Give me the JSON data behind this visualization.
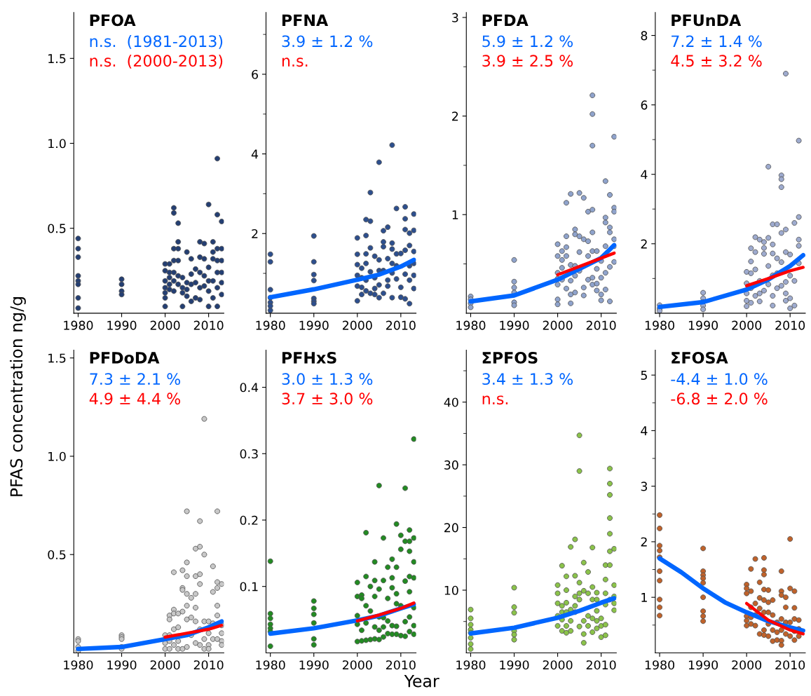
{
  "chart_data": [
    {
      "type": "scatter",
      "title": "PFOA",
      "annotations": [
        "n.s.  (1981-2013)",
        "n.s.  (2000-2013)"
      ],
      "xlim": [
        1979,
        2013.5
      ],
      "xticks": [
        1980,
        1990,
        2000,
        2010
      ],
      "ylim": [
        0,
        1.77
      ],
      "yticks": [
        0.5,
        {
          "value": 1.0,
          "label": "1.0"
        },
        1.5
      ],
      "series": [
        {
          "color": "#243f73",
          "marker": "circle",
          "x": [
            1980,
            1980,
            1980,
            1980,
            1980,
            1980,
            1980,
            1980,
            1990,
            1990,
            1990,
            1990,
            2000,
            2000,
            2000,
            2000,
            2000,
            2000,
            2000,
            2001,
            2001,
            2001,
            2001,
            2001,
            2002,
            2002,
            2002,
            2002,
            2002,
            2002,
            2002,
            2003,
            2003,
            2003,
            2003,
            2003,
            2003,
            2004,
            2004,
            2004,
            2004,
            2005,
            2005,
            2005,
            2005,
            2006,
            2006,
            2006,
            2006,
            2007,
            2007,
            2007,
            2008,
            2008,
            2008,
            2008,
            2008,
            2009,
            2009,
            2009,
            2009,
            2010,
            2010,
            2010,
            2010,
            2010,
            2011,
            2011,
            2011,
            2011,
            2011,
            2012,
            2012,
            2012,
            2012,
            2012,
            2012,
            2012,
            2013,
            2013,
            2013,
            2013,
            2013,
            2013
          ],
          "values": [
            0.44,
            0.38,
            0.33,
            0.22,
            0.19,
            0.17,
            0.09,
            0.03,
            0.2,
            0.17,
            0.13,
            0.11,
            0.29,
            0.25,
            0.19,
            0.15,
            0.12,
            0.09,
            0.04,
            0.29,
            0.24,
            0.21,
            0.17,
            0.14,
            0.62,
            0.59,
            0.38,
            0.31,
            0.24,
            0.19,
            0.13,
            0.53,
            0.42,
            0.38,
            0.31,
            0.22,
            0.17,
            0.21,
            0.15,
            0.12,
            0.04,
            0.36,
            0.18,
            0.14,
            0.1,
            0.32,
            0.23,
            0.17,
            0.07,
            0.26,
            0.18,
            0.09,
            0.42,
            0.33,
            0.24,
            0.15,
            0.08,
            0.41,
            0.32,
            0.22,
            0.16,
            0.64,
            0.27,
            0.19,
            0.13,
            0.04,
            0.42,
            0.36,
            0.32,
            0.19,
            0.09,
            0.91,
            0.58,
            0.38,
            0.31,
            0.24,
            0.15,
            0.04,
            0.54,
            0.38,
            0.31,
            0.24,
            0.18,
            0.11
          ]
        }
      ]
    },
    {
      "type": "scatter",
      "title": "PFNA",
      "annotations": [
        "3.9 ± 1.2 %",
        "n.s."
      ],
      "xlim": [
        1979,
        2013.5
      ],
      "xticks": [
        1980,
        1990,
        2000,
        2010
      ],
      "ylim": [
        0,
        7.55
      ],
      "yticks": [
        {
          "value": 1,
          "label": null
        },
        2,
        {
          "value": 3,
          "label": null
        },
        4,
        {
          "value": 5,
          "label": null
        },
        6,
        {
          "value": 7,
          "label": null
        }
      ],
      "series": [
        {
          "color": "#2d4f8e",
          "marker": "circle",
          "x": [
            1980,
            1980,
            1980,
            1980,
            1980,
            1980,
            1980,
            1990,
            1990,
            1990,
            1990,
            1990,
            1990,
            1990,
            2000,
            2000,
            2000,
            2000,
            2000,
            2000,
            2001,
            2001,
            2001,
            2001,
            2002,
            2002,
            2002,
            2002,
            2002,
            2002,
            2003,
            2003,
            2003,
            2003,
            2003,
            2004,
            2004,
            2004,
            2004,
            2005,
            2005,
            2005,
            2005,
            2005,
            2006,
            2006,
            2006,
            2006,
            2006,
            2007,
            2007,
            2007,
            2007,
            2008,
            2008,
            2008,
            2008,
            2008,
            2008,
            2009,
            2009,
            2009,
            2009,
            2010,
            2010,
            2010,
            2011,
            2011,
            2011,
            2011,
            2011,
            2011,
            2012,
            2012,
            2012,
            2012,
            2012,
            2013,
            2013,
            2013,
            2013,
            2013,
            2013
          ],
          "values": [
            1.48,
            1.29,
            0.59,
            0.39,
            0.27,
            0.18,
            0.07,
            1.94,
            1.29,
            0.97,
            0.82,
            0.37,
            0.3,
            0.24,
            1.89,
            1.48,
            1.22,
            0.95,
            0.68,
            0.31,
            1.13,
            0.89,
            0.65,
            0.47,
            2.35,
            1.95,
            1.49,
            1.25,
            0.83,
            0.56,
            3.03,
            2.31,
            1.64,
            1.04,
            0.5,
            1.43,
            0.89,
            0.62,
            0.47,
            3.79,
            1.34,
            1.07,
            0.71,
            0.39,
            2.07,
            1.79,
            1.67,
            1.07,
            0.5,
            2.16,
            1.37,
            0.83,
            0.68,
            4.22,
            1.76,
            1.61,
            1.25,
            1.01,
            0.39,
            2.63,
            1.49,
            1.19,
            0.86,
            1.5,
            0.65,
            0.4,
            2.67,
            2.37,
            2.1,
            1.58,
            0.98,
            0.36,
            2.01,
            1.7,
            1.19,
            0.83,
            0.24,
            2.49,
            2.08,
            1.55,
            1.25,
            0.95,
            0.62
          ]
        },
        {
          "type": "line",
          "color": "#0066ff",
          "x": [
            1980,
            1990,
            2000,
            2005,
            2010,
            2013
          ],
          "values": [
            0.4,
            0.6,
            0.84,
            0.97,
            1.17,
            1.34
          ]
        }
      ]
    },
    {
      "type": "scatter",
      "title": "PFDA",
      "annotations": [
        "5.9 ± 1.2 %",
        "3.9 ± 2.5 %"
      ],
      "xlim": [
        1979,
        2013.5
      ],
      "xticks": [
        1980,
        1990,
        2000,
        2010
      ],
      "ylim": [
        0,
        3.05
      ],
      "yticks": [
        {
          "value": 0.5,
          "label": null
        },
        1,
        {
          "value": 1.5,
          "label": null
        },
        2,
        {
          "value": 2.5,
          "label": null
        },
        3
      ],
      "series": [
        {
          "color": "#8fa3cc",
          "marker": "circle",
          "x": [
            1980,
            1980,
            1980,
            1980,
            1990,
            1990,
            1990,
            1990,
            1990,
            1990,
            2000,
            2000,
            2000,
            2000,
            2000,
            2000,
            2000,
            2001,
            2001,
            2001,
            2001,
            2002,
            2002,
            2002,
            2002,
            2002,
            2003,
            2003,
            2003,
            2003,
            2003,
            2004,
            2004,
            2004,
            2004,
            2004,
            2005,
            2005,
            2005,
            2005,
            2006,
            2006,
            2006,
            2006,
            2007,
            2007,
            2007,
            2007,
            2008,
            2008,
            2008,
            2008,
            2008,
            2008,
            2008,
            2008,
            2009,
            2009,
            2009,
            2009,
            2010,
            2010,
            2010,
            2010,
            2011,
            2011,
            2011,
            2011,
            2011,
            2011,
            2012,
            2012,
            2012,
            2012,
            2012,
            2013,
            2013,
            2013,
            2013,
            2013,
            2013
          ],
          "values": [
            0.17,
            0.14,
            0.1,
            0.06,
            0.54,
            0.32,
            0.26,
            0.21,
            0.11,
            0.08,
            0.7,
            0.58,
            0.41,
            0.35,
            0.29,
            0.14,
            0.09,
            0.63,
            0.54,
            0.46,
            0.34,
            1.12,
            0.78,
            0.67,
            0.58,
            0.25,
            1.21,
            0.49,
            0.33,
            0.19,
            0.1,
            0.85,
            0.8,
            0.48,
            0.38,
            0.21,
            1.22,
            0.78,
            0.62,
            0.43,
            1.17,
            0.75,
            0.26,
            0.18,
            1.03,
            0.73,
            0.58,
            0.34,
            2.21,
            2.02,
            1.7,
            1.05,
            0.82,
            0.63,
            0.36,
            0.29,
            0.63,
            0.45,
            0.3,
            0.23,
            0.53,
            0.36,
            0.19,
            0.13,
            1.34,
            0.97,
            0.92,
            0.68,
            0.41,
            0.24,
            1.2,
            0.87,
            0.82,
            0.47,
            0.12,
            1.79,
            1.07,
            1.03,
            0.75,
            0.68,
            0.52
          ]
        },
        {
          "type": "line",
          "color": "#0066ff",
          "x": [
            1980,
            1990,
            2000,
            2005,
            2010,
            2013
          ],
          "values": [
            0.12,
            0.18,
            0.34,
            0.45,
            0.56,
            0.69
          ]
        },
        {
          "type": "line",
          "color": "#ff0000",
          "x": [
            2000,
            2006,
            2013
          ],
          "values": [
            0.39,
            0.49,
            0.61
          ]
        }
      ]
    },
    {
      "type": "scatter",
      "title": "PFUnDA",
      "annotations": [
        "7.2 ± 1.4 %",
        "4.5 ± 3.2 %"
      ],
      "xlim": [
        1979,
        2013.5
      ],
      "xticks": [
        1980,
        1990,
        2000,
        2010
      ],
      "ylim": [
        0,
        8.66
      ],
      "yticks": [
        {
          "value": 1,
          "label": null
        },
        2,
        {
          "value": 3,
          "label": null
        },
        4,
        {
          "value": 5,
          "label": null
        },
        6,
        {
          "value": 7,
          "label": null
        },
        8
      ],
      "series": [
        {
          "color": "#9eabcf",
          "marker": "circle",
          "x": [
            1980,
            1980,
            1980,
            1990,
            1990,
            1990,
            1990,
            1990,
            2000,
            2000,
            2000,
            2000,
            2000,
            2001,
            2001,
            2001,
            2001,
            2001,
            2002,
            2002,
            2002,
            2002,
            2003,
            2003,
            2003,
            2003,
            2004,
            2004,
            2004,
            2004,
            2005,
            2005,
            2005,
            2005,
            2006,
            2006,
            2006,
            2006,
            2006,
            2006,
            2007,
            2007,
            2007,
            2007,
            2008,
            2008,
            2008,
            2008,
            2008,
            2008,
            2009,
            2009,
            2009,
            2009,
            2009,
            2009,
            2010,
            2010,
            2010,
            2010,
            2011,
            2011,
            2011,
            2012,
            2012,
            2012,
            2012,
            2012
          ],
          "values": [
            0.23,
            0.14,
            0.07,
            0.59,
            0.43,
            0.32,
            0.22,
            0.11,
            1.19,
            0.86,
            0.57,
            0.36,
            0.2,
            1.87,
            1.49,
            1.15,
            0.72,
            0.3,
            2.19,
            1.76,
            1.26,
            0.5,
            2.12,
            0.93,
            0.57,
            0.34,
            2.05,
            1.88,
            1.71,
            0.65,
            4.22,
            2.17,
            1.36,
            0.83,
            2.56,
            1.98,
            1.72,
            1.09,
            0.5,
            0.22,
            2.56,
            1.58,
            1.15,
            0.72,
            3.97,
            3.86,
            3.63,
            2.31,
            1.47,
            0.79,
            6.9,
            2.41,
            1.76,
            0.9,
            0.57,
            0.36,
            1.69,
            1.08,
            0.43,
            0.14,
            2.6,
            0.93,
            0.22,
            4.97,
            2.77,
            2.12,
            1.94,
            1.44
          ]
        },
        {
          "type": "line",
          "color": "#0066ff",
          "x": [
            1980,
            1990,
            2000,
            2005,
            2010,
            2013
          ],
          "values": [
            0.18,
            0.32,
            0.68,
            0.97,
            1.36,
            1.67
          ]
        },
        {
          "type": "line",
          "color": "#ff0000",
          "x": [
            2000,
            2005,
            2010,
            2013
          ],
          "values": [
            0.79,
            1.0,
            1.22,
            1.32
          ]
        }
      ]
    },
    {
      "type": "scatter",
      "title": "PFDoDA",
      "ylabel": "PFAS concentration ng/g",
      "annotations": [
        "7.3 ± 2.1 %",
        "4.9 ± 4.4 %"
      ],
      "xlim": [
        1979,
        2013.5
      ],
      "xticks": [
        1980,
        1990,
        2000,
        2010
      ],
      "ylim": [
        0,
        1.54
      ],
      "yticks": [
        0.5,
        {
          "value": 1.0,
          "label": "1.0"
        },
        1.5
      ],
      "series": [
        {
          "color": "#c8c8c8",
          "marker": "circle",
          "x": [
            1980,
            1980,
            1980,
            1980,
            1990,
            1990,
            1990,
            1990,
            1990,
            2000,
            2000,
            2000,
            2001,
            2001,
            2001,
            2001,
            2001,
            2002,
            2002,
            2002,
            2002,
            2002,
            2003,
            2003,
            2003,
            2003,
            2004,
            2004,
            2004,
            2004,
            2004,
            2005,
            2005,
            2005,
            2005,
            2005,
            2005,
            2005,
            2006,
            2006,
            2006,
            2007,
            2007,
            2007,
            2007,
            2007,
            2007,
            2008,
            2008,
            2008,
            2008,
            2008,
            2008,
            2009,
            2009,
            2009,
            2009,
            2009,
            2010,
            2010,
            2010,
            2010,
            2011,
            2011,
            2011,
            2011,
            2012,
            2012,
            2012,
            2012,
            2012,
            2012,
            2013,
            2013,
            2013,
            2013,
            2013
          ],
          "values": [
            0.07,
            0.06,
            0.03,
            0.01,
            0.09,
            0.08,
            0.07,
            0.03,
            0.02,
            0.09,
            0.05,
            0.02,
            0.19,
            0.17,
            0.09,
            0.06,
            0.02,
            0.41,
            0.22,
            0.2,
            0.12,
            0.04,
            0.2,
            0.13,
            0.06,
            0.02,
            0.42,
            0.33,
            0.32,
            0.21,
            0.02,
            0.72,
            0.46,
            0.39,
            0.3,
            0.24,
            0.17,
            0.03,
            0.28,
            0.18,
            0.09,
            0.53,
            0.39,
            0.3,
            0.23,
            0.16,
            0.05,
            0.67,
            0.54,
            0.4,
            0.35,
            0.12,
            0.04,
            1.19,
            0.5,
            0.16,
            0.07,
            0.02,
            0.16,
            0.1,
            0.04,
            0.02,
            0.44,
            0.31,
            0.15,
            0.07,
            0.72,
            0.36,
            0.33,
            0.24,
            0.19,
            0.07,
            0.35,
            0.14,
            0.1,
            0.06,
            0.04
          ]
        },
        {
          "type": "line",
          "color": "#0066ff",
          "x": [
            1980,
            1990,
            2000,
            2005,
            2010,
            2013
          ],
          "values": [
            0.02,
            0.03,
            0.07,
            0.09,
            0.13,
            0.16
          ]
        },
        {
          "type": "line",
          "color": "#ff0000",
          "x": [
            2000,
            2005,
            2010,
            2013
          ],
          "values": [
            0.08,
            0.1,
            0.12,
            0.14
          ]
        }
      ]
    },
    {
      "type": "scatter",
      "title": "PFHxS",
      "xlabel": "Year",
      "annotations": [
        "3.0 ± 1.3 %",
        "3.7 ± 3.0 %"
      ],
      "xlim": [
        1979,
        2013.5
      ],
      "xticks": [
        1980,
        1990,
        2000,
        2010
      ],
      "ylim": [
        0,
        0.456
      ],
      "yticks": [
        0.1,
        0.2,
        0.3,
        0.4
      ],
      "series": [
        {
          "color": "#228b22",
          "marker": "circle",
          "x": [
            1980,
            1980,
            1980,
            1980,
            1980,
            1980,
            1980,
            1990,
            1990,
            1990,
            1990,
            1990,
            1990,
            2000,
            2000,
            2000,
            2000,
            2000,
            2001,
            2001,
            2001,
            2001,
            2002,
            2002,
            2002,
            2002,
            2002,
            2003,
            2003,
            2003,
            2004,
            2004,
            2004,
            2004,
            2004,
            2005,
            2005,
            2005,
            2005,
            2005,
            2006,
            2006,
            2006,
            2006,
            2006,
            2007,
            2007,
            2007,
            2007,
            2008,
            2008,
            2008,
            2008,
            2008,
            2009,
            2009,
            2009,
            2009,
            2009,
            2009,
            2010,
            2010,
            2010,
            2010,
            2011,
            2011,
            2011,
            2011,
            2011,
            2012,
            2012,
            2012,
            2012,
            2012,
            2012,
            2012,
            2013,
            2013,
            2013,
            2013,
            2013,
            2013,
            2013
          ],
          "values": [
            0.138,
            0.059,
            0.052,
            0.043,
            0.037,
            0.032,
            0.01,
            0.078,
            0.067,
            0.058,
            0.045,
            0.021,
            0.012,
            0.106,
            0.085,
            0.056,
            0.043,
            0.017,
            0.087,
            0.082,
            0.034,
            0.018,
            0.181,
            0.115,
            0.071,
            0.045,
            0.019,
            0.1,
            0.063,
            0.02,
            0.137,
            0.109,
            0.085,
            0.039,
            0.021,
            0.252,
            0.096,
            0.054,
            0.034,
            0.02,
            0.173,
            0.109,
            0.053,
            0.039,
            0.024,
            0.129,
            0.082,
            0.048,
            0.029,
            0.141,
            0.113,
            0.098,
            0.041,
            0.028,
            0.194,
            0.129,
            0.089,
            0.074,
            0.04,
            0.028,
            0.177,
            0.156,
            0.071,
            0.026,
            0.248,
            0.168,
            0.108,
            0.047,
            0.025,
            0.185,
            0.168,
            0.153,
            0.115,
            0.092,
            0.054,
            0.032,
            0.322,
            0.173,
            0.137,
            0.113,
            0.068,
            0.041,
            0.028
          ]
        },
        {
          "type": "line",
          "color": "#0066ff",
          "x": [
            1980,
            1990,
            2000,
            2005,
            2010,
            2013
          ],
          "values": [
            0.029,
            0.037,
            0.049,
            0.056,
            0.067,
            0.073
          ]
        },
        {
          "type": "line",
          "color": "#ff0000",
          "x": [
            2000,
            2005,
            2010,
            2013
          ],
          "values": [
            0.048,
            0.057,
            0.067,
            0.075
          ]
        }
      ]
    },
    {
      "type": "scatter",
      "title": "ΣPFOS",
      "annotations": [
        "3.4 ± 1.3 %",
        "n.s."
      ],
      "xlim": [
        1979,
        2013.5
      ],
      "xticks": [
        1980,
        1990,
        2000,
        2010
      ],
      "ylim": [
        0,
        48.3
      ],
      "yticks": [
        {
          "value": 5,
          "label": null
        },
        10,
        {
          "value": 15,
          "label": null
        },
        20,
        {
          "value": 25,
          "label": null
        },
        30,
        {
          "value": 35,
          "label": null
        },
        40,
        {
          "value": 45,
          "label": null
        }
      ],
      "series": [
        {
          "color": "#8bc34a",
          "marker": "circle",
          "x": [
            1980,
            1980,
            1980,
            1980,
            1980,
            1980,
            1980,
            1980,
            1990,
            1990,
            1990,
            1990,
            1990,
            1990,
            2000,
            2000,
            2000,
            2000,
            2000,
            2001,
            2001,
            2001,
            2001,
            2001,
            2002,
            2002,
            2002,
            2002,
            2002,
            2002,
            2003,
            2003,
            2003,
            2003,
            2004,
            2004,
            2004,
            2004,
            2004,
            2005,
            2005,
            2005,
            2005,
            2005,
            2005,
            2006,
            2006,
            2006,
            2006,
            2006,
            2007,
            2007,
            2007,
            2007,
            2008,
            2008,
            2008,
            2008,
            2008,
            2009,
            2009,
            2009,
            2009,
            2009,
            2010,
            2010,
            2010,
            2011,
            2011,
            2011,
            2011,
            2011,
            2011,
            2012,
            2012,
            2012,
            2012,
            2012,
            2012,
            2012,
            2012,
            2013,
            2013,
            2013,
            2013,
            2013
          ],
          "values": [
            6.9,
            5.5,
            4.5,
            3.7,
            3.2,
            2.4,
            1.4,
            0.6,
            10.4,
            7.3,
            6.4,
            3.5,
            2.9,
            2.1,
            10.8,
            9.5,
            7.9,
            5.9,
            4.3,
            13.9,
            7.5,
            6.5,
            5.3,
            3.5,
            12.2,
            10.0,
            8.0,
            6.5,
            4.3,
            3.2,
            16.9,
            6.9,
            5.1,
            3.5,
            18.1,
            12.3,
            9.0,
            7.5,
            6.5,
            34.7,
            29.0,
            11.2,
            9.5,
            8.5,
            4.2,
            14.4,
            9.9,
            5.1,
            3.0,
            1.6,
            12.9,
            9.5,
            5.9,
            4.3,
            16.8,
            10.5,
            8.5,
            5.5,
            3.3,
            9.6,
            8.5,
            6.7,
            5.1,
            3.9,
            5.5,
            4.3,
            2.5,
            14.0,
            11.7,
            9.5,
            7.7,
            4.5,
            2.8,
            29.4,
            27.0,
            25.2,
            21.5,
            19.0,
            16.2,
            14.0,
            8.5,
            16.6,
            10.8,
            9.0,
            7.9,
            6.8
          ]
        },
        {
          "type": "line",
          "color": "#0066ff",
          "x": [
            1980,
            1990,
            2000,
            2005,
            2010,
            2013
          ],
          "values": [
            3.1,
            4.0,
            5.6,
            6.7,
            8.0,
            8.7
          ]
        }
      ]
    },
    {
      "type": "scatter",
      "title": "ΣFOSA",
      "annotations": [
        "-4.4 ± 1.0 %",
        "-6.8 ± 2.0 %"
      ],
      "xlim": [
        1979,
        2013.5
      ],
      "xticks": [
        1980,
        1990,
        2000,
        2010
      ],
      "ylim": [
        0,
        5.45
      ],
      "yticks": [
        {
          "value": 0.5,
          "label": null
        },
        1,
        {
          "value": 1.5,
          "label": null
        },
        2,
        {
          "value": 2.5,
          "label": null
        },
        3,
        {
          "value": 3.5,
          "label": null
        },
        4,
        {
          "value": 4.5,
          "label": null
        },
        5
      ],
      "series": [
        {
          "color": "#c0622a",
          "marker": "circle",
          "x": [
            1980,
            1980,
            1980,
            1980,
            1980,
            1980,
            1980,
            1980,
            1980,
            1980,
            1990,
            1990,
            1990,
            1990,
            1990,
            1990,
            1990,
            1990,
            1990,
            2000,
            2000,
            2000,
            2000,
            2000,
            2000,
            2001,
            2001,
            2001,
            2001,
            2001,
            2002,
            2002,
            2002,
            2002,
            2003,
            2003,
            2003,
            2003,
            2004,
            2004,
            2004,
            2004,
            2004,
            2004,
            2004,
            2004,
            2005,
            2005,
            2005,
            2005,
            2005,
            2006,
            2006,
            2006,
            2006,
            2007,
            2007,
            2007,
            2008,
            2008,
            2008,
            2008,
            2008,
            2008,
            2008,
            2009,
            2009,
            2009,
            2009,
            2010,
            2010,
            2010,
            2010,
            2011,
            2011,
            2011,
            2011,
            2011,
            2012,
            2012,
            2012
          ],
          "values": [
            2.48,
            2.24,
            1.93,
            1.84,
            1.72,
            1.47,
            1.3,
            0.96,
            0.82,
            0.67,
            1.88,
            1.47,
            1.4,
            1.34,
            1.26,
            1.0,
            0.75,
            0.66,
            0.57,
            1.23,
            1.16,
            1.07,
            0.66,
            0.58,
            0.49,
            1.51,
            1.11,
            0.82,
            0.64,
            0.52,
            1.69,
            0.89,
            0.68,
            0.49,
            1.27,
            0.99,
            0.8,
            0.34,
            1.71,
            1.49,
            1.41,
            1.14,
            0.95,
            0.73,
            0.41,
            0.32,
            1.13,
            0.91,
            0.73,
            0.52,
            0.3,
            0.95,
            0.68,
            0.41,
            0.21,
            0.55,
            0.37,
            0.23,
            1.47,
            1.11,
            1.04,
            0.61,
            0.41,
            0.22,
            0.14,
            1.0,
            0.82,
            0.55,
            0.34,
            2.05,
            1.16,
            0.55,
            0.3,
            1.11,
            0.81,
            0.61,
            0.39,
            0.23,
            0.59,
            0.43,
            0.3
          ]
        },
        {
          "type": "line",
          "color": "#0066ff",
          "x": [
            1980,
            1985,
            1990,
            1995,
            2000,
            2005,
            2010,
            2013
          ],
          "values": [
            1.7,
            1.45,
            1.16,
            0.91,
            0.73,
            0.57,
            0.46,
            0.4
          ]
        },
        {
          "type": "line",
          "color": "#ff0000",
          "x": [
            2000,
            2005,
            2010,
            2013
          ],
          "values": [
            0.89,
            0.59,
            0.41,
            0.34
          ]
        }
      ]
    }
  ]
}
